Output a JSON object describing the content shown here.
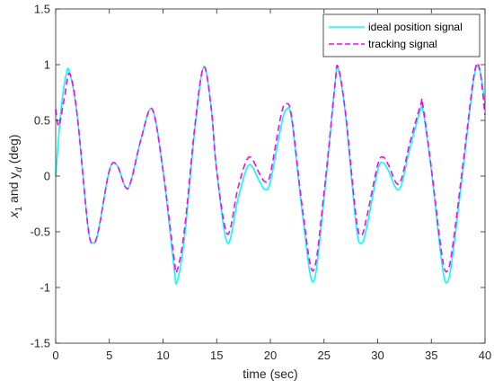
{
  "chart_data": {
    "type": "line",
    "xlabel": "time (sec)",
    "ylabel": {
      "x": "x",
      "x_sub": "1",
      "mid": " and y",
      "y_sub": "d",
      "unit": " (deg)"
    },
    "xlim": [
      0,
      40
    ],
    "ylim": [
      -1.5,
      1.5
    ],
    "x_ticks": [
      "0",
      "5",
      "10",
      "15",
      "20",
      "25",
      "30",
      "35",
      "40"
    ],
    "y_ticks": [
      "-1.5",
      "-1",
      "-0.5",
      "0",
      "0.5",
      "1",
      "1.5"
    ],
    "grid": false,
    "legend_position": "top-right",
    "series": [
      {
        "name": "ideal position signal",
        "color": "#00ffff",
        "style": "solid",
        "x": [
          0,
          0.5,
          1,
          1.3,
          2,
          3,
          3.5,
          4,
          5,
          5.7,
          6.5,
          7,
          8,
          9,
          10,
          11,
          11.3,
          12,
          13,
          13.8,
          14.5,
          15,
          16,
          17,
          18,
          19,
          19.5,
          20,
          21,
          21.5,
          22,
          23,
          24,
          25,
          26,
          26.3,
          27,
          28,
          28.5,
          29,
          30,
          30.5,
          31,
          32,
          33,
          34,
          34.2,
          35,
          36,
          36.5,
          37,
          38,
          39,
          39.5,
          40
        ],
        "y": [
          0,
          0.6,
          0.92,
          0.93,
          0.55,
          -0.45,
          -0.6,
          -0.48,
          0.05,
          0.1,
          -0.1,
          -0.05,
          0.35,
          0.6,
          0.05,
          -0.8,
          -0.95,
          -0.55,
          0.45,
          0.98,
          0.6,
          0.05,
          -0.6,
          -0.2,
          0.1,
          -0.05,
          -0.12,
          -0.05,
          0.45,
          0.6,
          0.5,
          -0.35,
          -0.95,
          -0.2,
          0.8,
          0.97,
          0.55,
          -0.45,
          -0.6,
          -0.45,
          0.05,
          0.12,
          0.05,
          -0.12,
          0.25,
          0.6,
          0.6,
          0.05,
          -0.8,
          -0.95,
          -0.7,
          0.1,
          0.9,
          0.95,
          0.65
        ]
      },
      {
        "name": "tracking signal",
        "color": "#ff00ff",
        "style": "dashed",
        "x": [
          0,
          0.3,
          0.8,
          1.3,
          2,
          3,
          3.5,
          4,
          5,
          5.7,
          6.5,
          7,
          8,
          9,
          10,
          11,
          11.3,
          12,
          13,
          13.8,
          14.5,
          15,
          16,
          17,
          18,
          19,
          19.5,
          20,
          21,
          21.5,
          22,
          23,
          24,
          25,
          26,
          26.3,
          27,
          28,
          28.5,
          29,
          30,
          30.5,
          31,
          32,
          33,
          34,
          34.2,
          35,
          36,
          36.5,
          37,
          38,
          39,
          39.5,
          40
        ],
        "y": [
          0.6,
          0.45,
          0.7,
          0.92,
          0.55,
          -0.45,
          -0.6,
          -0.48,
          0.05,
          0.1,
          -0.1,
          -0.05,
          0.35,
          0.6,
          0.05,
          -0.72,
          -0.85,
          -0.48,
          0.48,
          0.98,
          0.6,
          0.05,
          -0.52,
          -0.1,
          0.17,
          0.02,
          -0.05,
          0.02,
          0.55,
          0.65,
          0.52,
          -0.3,
          -0.85,
          -0.15,
          0.8,
          0.98,
          0.57,
          -0.38,
          -0.53,
          -0.36,
          0.1,
          0.17,
          0.1,
          -0.07,
          0.3,
          0.64,
          0.64,
          0.07,
          -0.72,
          -0.85,
          -0.62,
          0.15,
          0.92,
          0.96,
          0.55
        ]
      }
    ]
  }
}
